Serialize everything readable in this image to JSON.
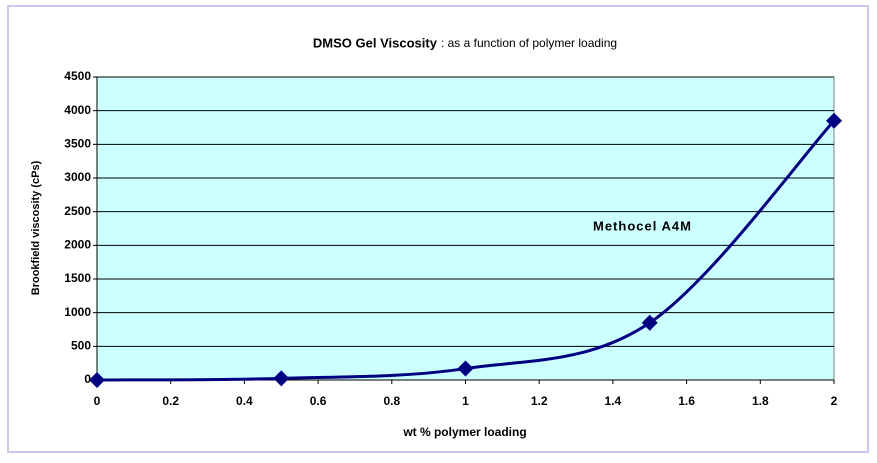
{
  "chart_data": {
    "type": "line",
    "title": "DMSO Gel Viscosity",
    "subtitle": ": as a function of polymer loading",
    "x_label": "wt % polymer loading",
    "y_label": "Brookfield viscosity (cPs)",
    "annotation": "Methocel A4M",
    "x": [
      0,
      0.5,
      1,
      1.5,
      2
    ],
    "series": [
      {
        "name": "Methocel A4M",
        "color": "#000080",
        "values": [
          0,
          25,
          170,
          850,
          3850
        ]
      }
    ],
    "xlim": [
      0,
      2
    ],
    "xticks": [
      0,
      0.2,
      0.4,
      0.6,
      0.8,
      1,
      1.2,
      1.4,
      1.6,
      1.8,
      2
    ],
    "ylim": [
      0,
      4500
    ],
    "yticks": [
      0,
      500,
      1000,
      1500,
      2000,
      2500,
      3000,
      3500,
      4000,
      4500
    ],
    "grid": true,
    "plot_background": "#ccffff"
  }
}
